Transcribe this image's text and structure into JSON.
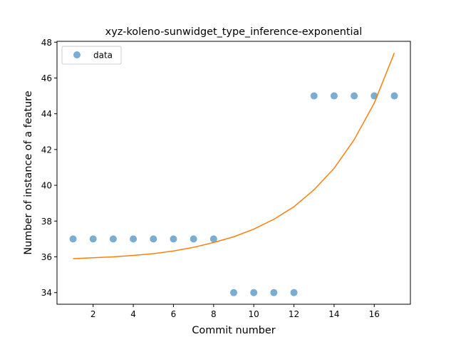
{
  "chart_data": {
    "type": "scatter",
    "title": "xyz-koleno-sunwidget_type_inference-exponential",
    "xlabel": "Commit number",
    "ylabel": "Number of instance of a feature",
    "xlim": [
      0.2,
      17.8
    ],
    "ylim": [
      33.35,
      48.05
    ],
    "xticks": [
      2,
      4,
      6,
      8,
      10,
      12,
      14,
      16
    ],
    "yticks": [
      34,
      36,
      38,
      40,
      42,
      44,
      46,
      48
    ],
    "grid": false,
    "legend_position": "upper-left",
    "series": [
      {
        "name": "data",
        "kind": "scatter",
        "color": "#1f77b4",
        "x": [
          1,
          2,
          3,
          4,
          5,
          6,
          7,
          8,
          9,
          10,
          11,
          12,
          13,
          14,
          15,
          16,
          17
        ],
        "y": [
          37,
          37,
          37,
          37,
          37,
          37,
          37,
          37,
          34,
          34,
          34,
          34,
          45,
          45,
          45,
          45,
          45
        ]
      },
      {
        "kind": "line",
        "color": "#ff7f0e",
        "x": [
          1,
          2,
          3,
          4,
          5,
          6,
          7,
          8,
          9,
          10,
          11,
          12,
          13,
          14,
          15,
          16,
          17
        ],
        "y": [
          35.9,
          35.95,
          36.0,
          36.08,
          36.18,
          36.33,
          36.53,
          36.8,
          37.12,
          37.55,
          38.1,
          38.8,
          39.75,
          40.95,
          42.55,
          44.6,
          47.4
        ]
      }
    ]
  }
}
